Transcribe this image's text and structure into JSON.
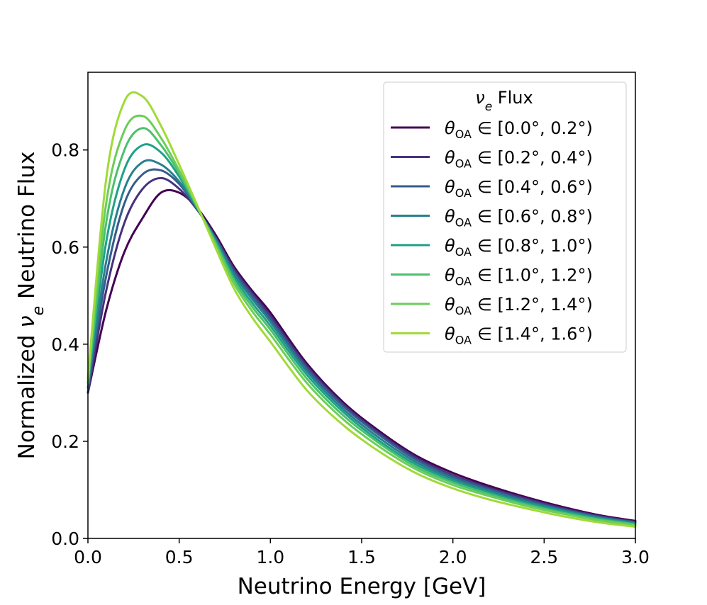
{
  "chart_data": {
    "type": "line",
    "title": "",
    "xlabel": "Neutrino Energy [GeV]",
    "ylabel_prefix": "Normalized ",
    "ylabel_symbol": "ν",
    "ylabel_subscript": "e",
    "ylabel_suffix": " Neutrino Flux",
    "xlim": [
      0.0,
      3.0
    ],
    "ylim": [
      0.0,
      0.96
    ],
    "xticks": [
      0.0,
      0.5,
      1.0,
      1.5,
      2.0,
      2.5,
      3.0
    ],
    "xtick_labels": [
      "0.0",
      "0.5",
      "1.0",
      "1.5",
      "2.0",
      "2.5",
      "3.0"
    ],
    "yticks": [
      0.0,
      0.2,
      0.4,
      0.6,
      0.8
    ],
    "ytick_labels": [
      "0.0",
      "0.2",
      "0.4",
      "0.6",
      "0.8"
    ],
    "legend": {
      "position": "top-right",
      "title_symbol": "ν",
      "title_subscript": "e",
      "title_suffix": " Flux"
    },
    "label_symbol": "θ",
    "label_subscript": "OA",
    "label_operator": "∈",
    "x": [
      0.0,
      0.1,
      0.2,
      0.3,
      0.4,
      0.5,
      0.6,
      0.7,
      0.8,
      0.9,
      1.0,
      1.2,
      1.4,
      1.6,
      1.8,
      2.0,
      2.2,
      2.4,
      2.6,
      2.8,
      3.0
    ],
    "series": [
      {
        "name": "[0.0°, 0.2°)",
        "color": "#440154",
        "values": [
          0.3,
          0.47,
          0.59,
          0.66,
          0.712,
          0.712,
          0.68,
          0.625,
          0.56,
          0.51,
          0.465,
          0.36,
          0.28,
          0.22,
          0.17,
          0.135,
          0.108,
          0.085,
          0.065,
          0.048,
          0.036
        ]
      },
      {
        "name": "[0.2°, 0.4°)",
        "color": "#46327e",
        "values": [
          0.3,
          0.51,
          0.65,
          0.72,
          0.742,
          0.72,
          0.676,
          0.62,
          0.555,
          0.505,
          0.458,
          0.355,
          0.276,
          0.216,
          0.166,
          0.13,
          0.104,
          0.082,
          0.062,
          0.046,
          0.034
        ]
      },
      {
        "name": "[0.4°, 0.6°)",
        "color": "#365c8d",
        "values": [
          0.31,
          0.54,
          0.69,
          0.75,
          0.758,
          0.73,
          0.678,
          0.618,
          0.55,
          0.5,
          0.452,
          0.35,
          0.272,
          0.212,
          0.162,
          0.127,
          0.101,
          0.079,
          0.06,
          0.044,
          0.033
        ]
      },
      {
        "name": "[0.6°, 0.8°)",
        "color": "#277f8e",
        "values": [
          0.31,
          0.57,
          0.72,
          0.775,
          0.77,
          0.735,
          0.678,
          0.615,
          0.545,
          0.493,
          0.446,
          0.344,
          0.266,
          0.206,
          0.157,
          0.123,
          0.098,
          0.076,
          0.058,
          0.043,
          0.032
        ]
      },
      {
        "name": "[0.8°, 1.0°)",
        "color": "#1fa187",
        "values": [
          0.32,
          0.61,
          0.76,
          0.81,
          0.795,
          0.745,
          0.68,
          0.612,
          0.538,
          0.485,
          0.438,
          0.337,
          0.26,
          0.2,
          0.152,
          0.119,
          0.094,
          0.073,
          0.056,
          0.041,
          0.03
        ]
      },
      {
        "name": "[1.0°, 1.2°)",
        "color": "#4ac16d",
        "values": [
          0.32,
          0.65,
          0.8,
          0.845,
          0.81,
          0.752,
          0.682,
          0.608,
          0.532,
          0.477,
          0.43,
          0.329,
          0.253,
          0.195,
          0.147,
          0.115,
          0.091,
          0.07,
          0.053,
          0.039,
          0.029
        ]
      },
      {
        "name": "[1.2°, 1.4°)",
        "color": "#6ccd5a",
        "values": [
          0.33,
          0.69,
          0.84,
          0.87,
          0.825,
          0.758,
          0.683,
          0.604,
          0.525,
          0.468,
          0.42,
          0.32,
          0.245,
          0.188,
          0.142,
          0.11,
          0.087,
          0.067,
          0.051,
          0.037,
          0.027
        ]
      },
      {
        "name": "[1.4°, 1.6°)",
        "color": "#a0da39",
        "values": [
          0.33,
          0.74,
          0.9,
          0.91,
          0.85,
          0.77,
          0.685,
          0.598,
          0.515,
          0.455,
          0.405,
          0.305,
          0.233,
          0.178,
          0.134,
          0.103,
          0.08,
          0.062,
          0.046,
          0.033,
          0.024
        ]
      }
    ]
  }
}
